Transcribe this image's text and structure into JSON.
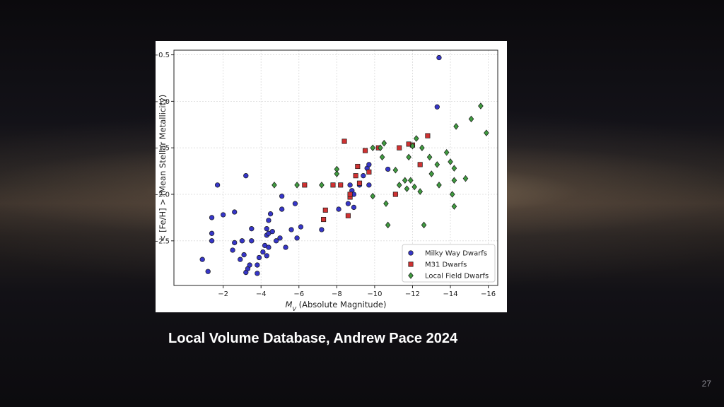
{
  "slide": {
    "caption": "Local Volume Database, Andrew Pace 2024",
    "page_number": "27"
  },
  "chart_data": {
    "type": "scatter",
    "title": "",
    "xlabel": "M_V (Absolute Magnitude)",
    "xlabel_parts": {
      "symbol": "M",
      "subscript": "V",
      "rest": " (Absolute Magnitude)"
    },
    "ylabel": "< [Fe/H] > (Mean Stellar Metallicity)",
    "xlim": [
      0.6,
      -16.5
    ],
    "ylim": [
      -2.98,
      -0.45
    ],
    "x_inverted": true,
    "xticks": [
      -2,
      -4,
      -6,
      -8,
      -10,
      -12,
      -14,
      -16
    ],
    "xtick_labels": [
      "−2",
      "−4",
      "−6",
      "−8",
      "−10",
      "−12",
      "−14",
      "−16"
    ],
    "yticks": [
      -0.5,
      -1.0,
      -1.5,
      -2.0,
      -2.5
    ],
    "ytick_labels": [
      "−0.5",
      "−1.0",
      "−1.5",
      "−2.0",
      "−2.5"
    ],
    "grid": true,
    "legend_position": "bottom-right",
    "series": [
      {
        "name": "Milky Way Dwarfs",
        "marker": "circle",
        "color": "#3636c8",
        "points": [
          [
            -0.9,
            -2.7
          ],
          [
            -1.2,
            -2.83
          ],
          [
            -1.4,
            -2.25
          ],
          [
            -1.4,
            -2.42
          ],
          [
            -1.4,
            -2.5
          ],
          [
            -1.7,
            -1.9
          ],
          [
            -2.0,
            -2.22
          ],
          [
            -2.5,
            -2.6
          ],
          [
            -2.6,
            -2.52
          ],
          [
            -2.6,
            -2.19
          ],
          [
            -2.9,
            -2.7
          ],
          [
            -3.0,
            -2.5
          ],
          [
            -3.1,
            -2.65
          ],
          [
            -3.2,
            -1.8
          ],
          [
            -3.2,
            -2.84
          ],
          [
            -3.3,
            -2.8
          ],
          [
            -3.4,
            -2.76
          ],
          [
            -3.5,
            -2.5
          ],
          [
            -3.5,
            -2.37
          ],
          [
            -3.8,
            -2.76
          ],
          [
            -3.8,
            -2.85
          ],
          [
            -3.9,
            -2.68
          ],
          [
            -4.1,
            -2.62
          ],
          [
            -4.2,
            -2.55
          ],
          [
            -4.3,
            -2.44
          ],
          [
            -4.3,
            -2.37
          ],
          [
            -4.3,
            -2.66
          ],
          [
            -4.4,
            -2.57
          ],
          [
            -4.4,
            -2.42
          ],
          [
            -4.4,
            -2.28
          ],
          [
            -4.5,
            -2.21
          ],
          [
            -4.6,
            -2.4
          ],
          [
            -4.8,
            -2.5
          ],
          [
            -5.0,
            -2.47
          ],
          [
            -5.1,
            -2.16
          ],
          [
            -5.1,
            -2.02
          ],
          [
            -5.3,
            -2.57
          ],
          [
            -5.6,
            -2.38
          ],
          [
            -5.8,
            -2.1
          ],
          [
            -5.9,
            -2.47
          ],
          [
            -6.1,
            -2.35
          ],
          [
            -7.2,
            -2.38
          ],
          [
            -8.1,
            -2.16
          ],
          [
            -8.6,
            -2.1
          ],
          [
            -8.7,
            -1.9
          ],
          [
            -8.8,
            -1.96
          ],
          [
            -8.9,
            -2.0
          ],
          [
            -8.9,
            -2.14
          ],
          [
            -9.2,
            -1.9
          ],
          [
            -9.4,
            -1.8
          ],
          [
            -9.6,
            -1.72
          ],
          [
            -9.7,
            -1.68
          ],
          [
            -9.7,
            -1.9
          ],
          [
            -10.7,
            -1.73
          ],
          [
            -13.3,
            -1.06
          ],
          [
            -13.4,
            -0.53
          ]
        ]
      },
      {
        "name": "M31 Dwarfs",
        "marker": "square",
        "color": "#d03232",
        "points": [
          [
            -6.3,
            -1.9
          ],
          [
            -7.3,
            -2.27
          ],
          [
            -7.4,
            -2.17
          ],
          [
            -7.8,
            -1.9
          ],
          [
            -8.2,
            -1.9
          ],
          [
            -8.4,
            -1.43
          ],
          [
            -8.6,
            -2.23
          ],
          [
            -8.7,
            -2.03
          ],
          [
            -8.7,
            -2.0
          ],
          [
            -9.0,
            -1.8
          ],
          [
            -9.1,
            -1.7
          ],
          [
            -9.2,
            -1.88
          ],
          [
            -9.5,
            -1.53
          ],
          [
            -9.7,
            -1.76
          ],
          [
            -10.2,
            -1.5
          ],
          [
            -11.1,
            -2.0
          ],
          [
            -11.3,
            -1.5
          ],
          [
            -11.8,
            -1.46
          ],
          [
            -12.0,
            -1.47
          ],
          [
            -12.4,
            -1.68
          ],
          [
            -12.8,
            -1.37
          ]
        ]
      },
      {
        "name": "Local Field Dwarfs",
        "marker": "diamond",
        "color": "#3f9a3f",
        "points": [
          [
            -4.7,
            -1.9
          ],
          [
            -5.9,
            -1.9
          ],
          [
            -7.2,
            -1.9
          ],
          [
            -8.0,
            -1.73
          ],
          [
            -8.0,
            -1.78
          ],
          [
            -9.9,
            -1.5
          ],
          [
            -9.9,
            -2.02
          ],
          [
            -10.3,
            -1.5
          ],
          [
            -10.4,
            -1.6
          ],
          [
            -10.5,
            -1.45
          ],
          [
            -10.6,
            -2.1
          ],
          [
            -10.7,
            -2.33
          ],
          [
            -11.1,
            -1.74
          ],
          [
            -11.3,
            -1.9
          ],
          [
            -11.6,
            -1.85
          ],
          [
            -11.7,
            -1.94
          ],
          [
            -11.8,
            -1.6
          ],
          [
            -11.9,
            -1.85
          ],
          [
            -12.0,
            -1.48
          ],
          [
            -12.1,
            -1.92
          ],
          [
            -12.2,
            -1.4
          ],
          [
            -12.4,
            -1.97
          ],
          [
            -12.5,
            -1.5
          ],
          [
            -12.6,
            -2.33
          ],
          [
            -12.9,
            -1.6
          ],
          [
            -13.0,
            -1.78
          ],
          [
            -13.3,
            -1.68
          ],
          [
            -13.4,
            -1.9
          ],
          [
            -13.8,
            -1.55
          ],
          [
            -14.0,
            -1.65
          ],
          [
            -14.1,
            -2.0
          ],
          [
            -14.2,
            -2.13
          ],
          [
            -14.2,
            -1.72
          ],
          [
            -14.2,
            -1.85
          ],
          [
            -14.3,
            -1.27
          ],
          [
            -14.8,
            -1.83
          ],
          [
            -15.1,
            -1.19
          ],
          [
            -15.6,
            -1.05
          ],
          [
            -15.9,
            -1.34
          ]
        ]
      }
    ]
  }
}
